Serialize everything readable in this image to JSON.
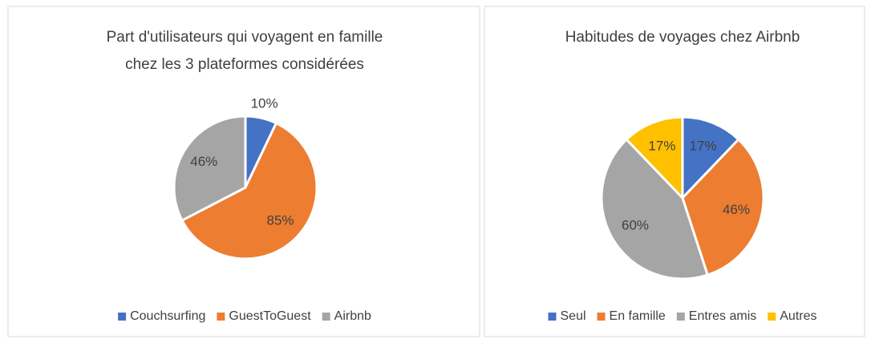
{
  "chart_data": [
    {
      "type": "pie",
      "title": [
        "Part d'utilisateurs qui voyagent en famille",
        "chez les 3 plateformes considérées"
      ],
      "categories": [
        "Couchsurfing",
        "GuestToGuest",
        "Airbnb"
      ],
      "values": [
        10,
        85,
        46
      ],
      "value_labels": [
        "10%",
        "85%",
        "46%"
      ],
      "colors": [
        "#4472c4",
        "#ed7d31",
        "#a5a5a5"
      ],
      "legend": "bottom"
    },
    {
      "type": "pie",
      "title": [
        "Habitudes de voyages chez Airbnb"
      ],
      "categories": [
        "Seul",
        "En famille",
        "Entres amis",
        "Autres"
      ],
      "values": [
        17,
        46,
        60,
        17
      ],
      "value_labels": [
        "17%",
        "46%",
        "60%",
        "17%"
      ],
      "colors": [
        "#4472c4",
        "#ed7d31",
        "#a5a5a5",
        "#ffc000"
      ],
      "legend": "bottom"
    }
  ]
}
